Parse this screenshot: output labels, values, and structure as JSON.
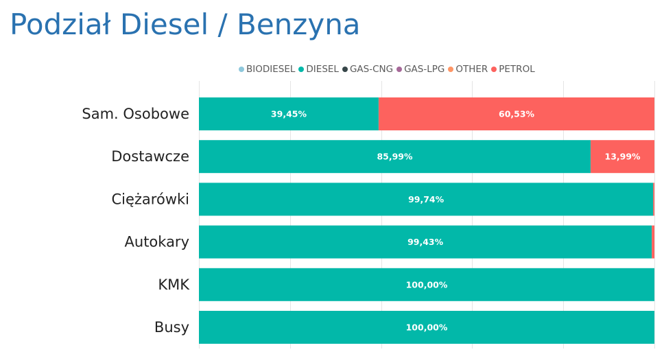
{
  "chart_data": {
    "type": "bar",
    "orientation": "horizontal",
    "stacked": "100%",
    "title": "Podział Diesel / Benzyna",
    "legend_placement": "top",
    "grid": true,
    "xlim": [
      0,
      100
    ],
    "legend": [
      {
        "name": "BIODIESEL",
        "color": "#8ec8dc"
      },
      {
        "name": "DIESEL",
        "color": "#02b8a9"
      },
      {
        "name": "GAS-CNG",
        "color": "#374649"
      },
      {
        "name": "GAS-LPG",
        "color": "#a66999"
      },
      {
        "name": "OTHER",
        "color": "#fe9666"
      },
      {
        "name": "PETROL",
        "color": "#fd625e"
      }
    ],
    "categories": [
      "Sam. Osobowe",
      "Dostawcze",
      "Ciężarówki",
      "Autokary",
      "KMK",
      "Busy"
    ],
    "series": [
      {
        "name": "BIODIESEL",
        "color": "#8ec8dc",
        "values": [
          0,
          0,
          0,
          0,
          0,
          0
        ]
      },
      {
        "name": "DIESEL",
        "color": "#02b8a9",
        "values": [
          39.45,
          85.99,
          99.74,
          99.43,
          100,
          100
        ],
        "labels": [
          "39,45%",
          "85,99%",
          "99,74%",
          "99,43%",
          "100,00%",
          "100,00%"
        ]
      },
      {
        "name": "GAS-CNG",
        "color": "#374649",
        "values": [
          0,
          0,
          0,
          0,
          0,
          0
        ]
      },
      {
        "name": "GAS-LPG",
        "color": "#a66999",
        "values": [
          0,
          0,
          0,
          0,
          0,
          0
        ]
      },
      {
        "name": "OTHER",
        "color": "#fe9666",
        "values": [
          0.02,
          0.02,
          0,
          0,
          0,
          0
        ]
      },
      {
        "name": "PETROL",
        "color": "#fd625e",
        "values": [
          60.53,
          13.99,
          0.26,
          0.57,
          0,
          0
        ],
        "labels": [
          "60,53%",
          "13,99%",
          "",
          "",
          "",
          ""
        ]
      }
    ]
  }
}
